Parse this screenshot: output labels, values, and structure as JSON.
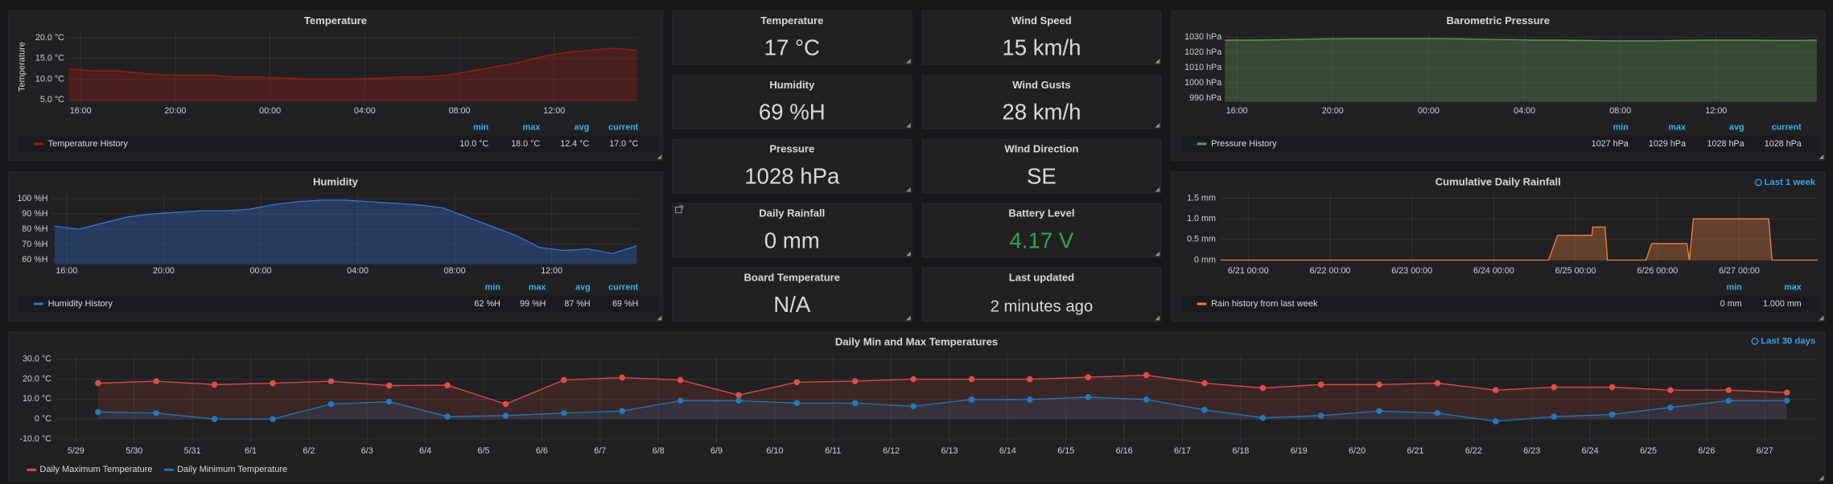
{
  "chart_data": [
    {
      "type": "line",
      "title": "Temperature",
      "ylabel": "Temperature",
      "fill": true,
      "x": [
        15.5,
        16.5,
        17.5,
        18.5,
        19.5,
        20.5,
        21.5,
        22.5,
        23.5,
        24.5,
        25.5,
        26.5,
        27.5,
        28.5,
        29.5,
        30.5,
        31.5,
        32.5,
        33.5,
        34.5,
        35.5,
        36.5,
        37.5,
        38.5,
        39.5
      ],
      "xlim": [
        15.46,
        39.55
      ],
      "xticks": [
        {
          "value": 16,
          "label": "16:00"
        },
        {
          "value": 20,
          "label": "20:00"
        },
        {
          "value": 24,
          "label": "00:00"
        },
        {
          "value": 28,
          "label": "04:00"
        },
        {
          "value": 32,
          "label": "08:00"
        },
        {
          "value": 36,
          "label": "12:00"
        }
      ],
      "ylim": [
        4.5,
        21.5
      ],
      "yticks": [
        {
          "value": 5,
          "label": "5.0 °C"
        },
        {
          "value": 10,
          "label": "10.0 °C"
        },
        {
          "value": 15,
          "label": "15.0 °C"
        },
        {
          "value": 20,
          "label": "20.0 °C"
        }
      ],
      "grid": true,
      "series": [
        {
          "name": "Temperature History",
          "color": "#a31c0c",
          "values": [
            12.5,
            12,
            12,
            11.5,
            11,
            11,
            11,
            10.5,
            10.5,
            10.3,
            10,
            10,
            10,
            10.2,
            10.5,
            10.5,
            11,
            12,
            13,
            14,
            15.5,
            16.5,
            17,
            17.5,
            17
          ]
        }
      ],
      "legend": {
        "columns": [
          "min",
          "max",
          "avg",
          "current"
        ],
        "values": [
          [
            "10.0 °C",
            "18.0 °C",
            "12.4 °C",
            "17.0 °C"
          ]
        ]
      }
    },
    {
      "type": "line",
      "title": "Humidity",
      "fill": true,
      "x": [
        15.5,
        16.5,
        17.5,
        18.5,
        19.5,
        20.5,
        21.5,
        22.5,
        23.5,
        24.5,
        25.5,
        26.5,
        27.5,
        28.5,
        29.5,
        30.5,
        31.5,
        32.5,
        33.5,
        34.5,
        35.5,
        36.5,
        37.5,
        38.5,
        39.5
      ],
      "xlim": [
        15.37,
        39.57
      ],
      "xticks": [
        {
          "value": 16,
          "label": "16:00"
        },
        {
          "value": 20,
          "label": "20:00"
        },
        {
          "value": 24,
          "label": "00:00"
        },
        {
          "value": 28,
          "label": "04:00"
        },
        {
          "value": 32,
          "label": "08:00"
        },
        {
          "value": 36,
          "label": "12:00"
        }
      ],
      "ylim": [
        57,
        103
      ],
      "yticks": [
        {
          "value": 60,
          "label": "60 %H"
        },
        {
          "value": 70,
          "label": "70 %H"
        },
        {
          "value": 80,
          "label": "80 %H"
        },
        {
          "value": 90,
          "label": "90 %H"
        },
        {
          "value": 100,
          "label": "100 %H"
        }
      ],
      "grid": true,
      "series": [
        {
          "name": "Humidity History",
          "color": "#3274d9",
          "values": [
            82,
            80,
            84,
            88,
            90,
            91,
            92,
            92,
            93,
            96,
            98,
            99,
            99,
            98,
            97,
            96,
            94,
            88,
            82,
            76,
            68,
            66,
            67,
            64,
            69
          ]
        }
      ],
      "legend": {
        "columns": [
          "min",
          "max",
          "avg",
          "current"
        ],
        "values": [
          [
            "62 %H",
            "99 %H",
            "87 %H",
            "69 %H"
          ]
        ]
      }
    },
    {
      "type": "line",
      "title": "Barometric Pressure",
      "fill": true,
      "x": [
        15.5,
        16.5,
        17.5,
        18.5,
        19.5,
        20.5,
        21.5,
        22.5,
        23.5,
        24.5,
        25.5,
        26.5,
        27.5,
        28.5,
        29.5,
        30.5,
        31.5,
        32.5,
        33.5,
        34.5,
        35.5,
        36.5,
        37.5,
        38.5,
        39.5,
        40.2
      ],
      "xlim": [
        15.46,
        40.24
      ],
      "xticks": [
        {
          "value": 16,
          "label": "16:00"
        },
        {
          "value": 20,
          "label": "20:00"
        },
        {
          "value": 24,
          "label": "00:00"
        },
        {
          "value": 28,
          "label": "04:00"
        },
        {
          "value": 32,
          "label": "08:00"
        },
        {
          "value": 36,
          "label": "12:00"
        }
      ],
      "ylim": [
        987.5,
        1033.5
      ],
      "yticks": [
        {
          "value": 990,
          "label": "990 hPa"
        },
        {
          "value": 1000,
          "label": "1000 hPa"
        },
        {
          "value": 1010,
          "label": "1010 hPa"
        },
        {
          "value": 1020,
          "label": "1020 hPa"
        },
        {
          "value": 1030,
          "label": "1030 hPa"
        }
      ],
      "grid": true,
      "series": [
        {
          "name": "Pressure History",
          "color": "#629e51",
          "values": [
            1028,
            1028,
            1028.2,
            1028.5,
            1028.8,
            1029,
            1029,
            1029,
            1029,
            1029,
            1028.8,
            1028.5,
            1028.3,
            1028,
            1028,
            1027.8,
            1027.5,
            1027.5,
            1027.5,
            1027.8,
            1028,
            1028,
            1028,
            1027.8,
            1027.8,
            1028
          ]
        }
      ],
      "legend": {
        "columns": [
          "min",
          "max",
          "avg",
          "current"
        ],
        "values": [
          [
            "1027 hPa",
            "1029 hPa",
            "1028 hPa",
            "1028 hPa"
          ]
        ]
      }
    },
    {
      "type": "line",
      "title": "Cumulative Daily Rainfall",
      "time_range": "Last 1 week",
      "fill": true,
      "x": [
        20.66,
        24.67,
        24.78,
        25.2,
        25.21,
        25.36,
        25.39,
        25.86,
        25.93,
        26.36,
        26.39,
        26.44,
        27.36,
        27.4,
        27.96
      ],
      "xlim": [
        20.66,
        27.96
      ],
      "xticks": [
        {
          "value": 21,
          "label": "6/21 00:00"
        },
        {
          "value": 22,
          "label": "6/22 00:00"
        },
        {
          "value": 23,
          "label": "6/23 00:00"
        },
        {
          "value": 24,
          "label": "6/24 00:00"
        },
        {
          "value": 25,
          "label": "6/25 00:00"
        },
        {
          "value": 26,
          "label": "6/26 00:00"
        },
        {
          "value": 27,
          "label": "6/27 00:00"
        }
      ],
      "ylim": [
        -0.1,
        1.6
      ],
      "yticks": [
        {
          "value": 0,
          "label": "0 mm"
        },
        {
          "value": 0.5,
          "label": "0.5 mm"
        },
        {
          "value": 1,
          "label": "1.0 mm"
        },
        {
          "value": 1.5,
          "label": "1.5 mm"
        }
      ],
      "grid": true,
      "series": [
        {
          "name": "Rain history from last week",
          "color": "#ef843c",
          "values": [
            0,
            0,
            0.6,
            0.6,
            0.8,
            0.8,
            0,
            0,
            0.4,
            0.4,
            0,
            1,
            1,
            0,
            0
          ]
        }
      ],
      "legend": {
        "columns": [
          "min",
          "max"
        ],
        "values": [
          [
            "0 mm",
            "1.000 mm"
          ]
        ]
      }
    },
    {
      "type": "line",
      "title": "Daily Min and Max Temperatures",
      "time_range": "Last 30 days",
      "fill": true,
      "markers": true,
      "categories": [
        "5/29",
        "5/30",
        "5/31",
        "6/1",
        "6/2",
        "6/3",
        "6/4",
        "6/5",
        "6/6",
        "6/7",
        "6/8",
        "6/9",
        "6/10",
        "6/11",
        "6/12",
        "6/13",
        "6/14",
        "6/15",
        "6/16",
        "6/17",
        "6/18",
        "6/19",
        "6/20",
        "6/21",
        "6/22",
        "6/23",
        "6/24",
        "6/25",
        "6/26",
        "6/27"
      ],
      "ylim": [
        -12,
        32
      ],
      "yticks": [
        {
          "value": -10,
          "label": "-10.0 °C"
        },
        {
          "value": 0,
          "label": "0 °C"
        },
        {
          "value": 10,
          "label": "10.0 °C"
        },
        {
          "value": 20,
          "label": "20.0 °C"
        },
        {
          "value": 30,
          "label": "30.0 °C"
        }
      ],
      "grid": true,
      "series": [
        {
          "name": "Daily Maximum Temperature",
          "color": "#e24d42",
          "values": [
            18,
            19,
            17.3,
            18,
            19,
            16.8,
            17,
            7.5,
            19.6,
            20.8,
            19.6,
            12,
            18.5,
            19,
            20,
            20,
            20,
            21,
            22,
            18,
            15.6,
            17.3,
            17.3,
            18,
            14.5,
            16,
            16,
            14.5,
            14.5,
            13.3
          ]
        },
        {
          "name": "Daily Minimum Temperature",
          "color": "#1f78c1",
          "values": [
            3.5,
            3,
            0,
            0,
            7.5,
            8.7,
            1.2,
            1.7,
            3,
            4,
            9.2,
            9.2,
            8,
            8,
            6.4,
            9.8,
            9.8,
            11,
            9.8,
            4.6,
            0.6,
            1.7,
            4,
            3,
            -1.2,
            1.2,
            2.3,
            5.8,
            9.2,
            9.2
          ]
        }
      ]
    }
  ],
  "stats": [
    {
      "title": "Temperature",
      "value": "17 °C"
    },
    {
      "title": "Wind Speed",
      "value": "15 km/h"
    },
    {
      "title": "Humidity",
      "value": "69 %H"
    },
    {
      "title": "Wind Gusts",
      "value": "28 km/h"
    },
    {
      "title": "Pressure",
      "value": "1028 hPa"
    },
    {
      "title": "WInd Direction",
      "value": "SE"
    },
    {
      "title": "Daily Rainfall",
      "value": "0 mm"
    },
    {
      "title": "Battery Level",
      "value": "4.17 V",
      "color": "#37a347"
    },
    {
      "title": "Board Temperature",
      "value": "N/A"
    },
    {
      "title": "Last updated",
      "value": "2 minutes ago"
    }
  ]
}
